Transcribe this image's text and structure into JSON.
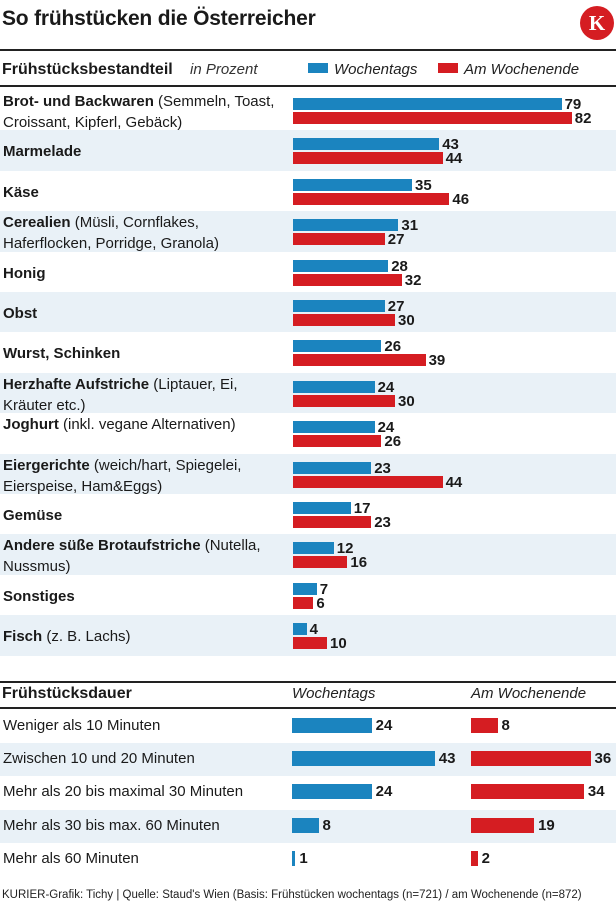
{
  "title": "So frühstücken die Österreicher",
  "logo_letter": "K",
  "colors": {
    "weekday": "#1b84bf",
    "weekend": "#d51d22",
    "row_alt": "#e9f1f7"
  },
  "chart_data": [
    {
      "type": "bar",
      "orientation": "horizontal",
      "title": "Frühstücksbestandteil",
      "unit": "in Prozent",
      "legend": [
        "Wochentags",
        "Am Wochenende"
      ],
      "categories": [
        {
          "bold": "Brot- und Backwaren",
          "rest": "(Semmeln, Toast, Croissant, Kipferl, Gebäck)"
        },
        {
          "bold": "Marmelade",
          "rest": ""
        },
        {
          "bold": "Käse",
          "rest": ""
        },
        {
          "bold": "Cerealien",
          "rest": "(Müsli, Cornflakes, Haferflocken, Porridge, Granola)"
        },
        {
          "bold": "Honig",
          "rest": ""
        },
        {
          "bold": "Obst",
          "rest": ""
        },
        {
          "bold": "Wurst, Schinken",
          "rest": ""
        },
        {
          "bold": "Herzhafte Aufstriche",
          "rest": "(Liptauer, Ei, Kräuter etc.)"
        },
        {
          "bold": "Joghurt",
          "rest": "(inkl. vegane Alternativen)"
        },
        {
          "bold": "Eiergerichte",
          "rest": "(weich/hart, Spiegelei, Eierspeise, Ham&Eggs)"
        },
        {
          "bold": "Gemüse",
          "rest": ""
        },
        {
          "bold": "Andere süße Brotaufstriche",
          "rest": "(Nutella, Nussmus)"
        },
        {
          "bold": "Sonstiges",
          "rest": ""
        },
        {
          "bold": "Fisch",
          "rest": "(z. B. Lachs)"
        }
      ],
      "series": [
        {
          "name": "Wochentags",
          "values": [
            79,
            43,
            35,
            31,
            28,
            27,
            26,
            24,
            24,
            23,
            17,
            12,
            7,
            4
          ]
        },
        {
          "name": "Am Wochenende",
          "values": [
            82,
            44,
            46,
            27,
            32,
            30,
            39,
            30,
            26,
            44,
            23,
            16,
            6,
            10
          ]
        }
      ]
    },
    {
      "type": "bar",
      "orientation": "horizontal",
      "title": "Frühstücksdauer",
      "categories": [
        "Weniger als 10 Minuten",
        "Zwischen 10 und 20 Minuten",
        "Mehr als 20 bis maximal 30 Minuten",
        "Mehr als 30 bis max. 60 Minuten",
        "Mehr als 60 Minuten"
      ],
      "series": [
        {
          "name": "Wochentags",
          "values": [
            24,
            43,
            24,
            8,
            1
          ]
        },
        {
          "name": "Am Wochenende",
          "values": [
            8,
            36,
            34,
            19,
            2
          ]
        }
      ]
    }
  ],
  "footer": "KURIER-Grafik: Tichy | Quelle: Staud's Wien (Basis: Frühstücken wochentags (n=721) / am Wochenende (n=872)"
}
